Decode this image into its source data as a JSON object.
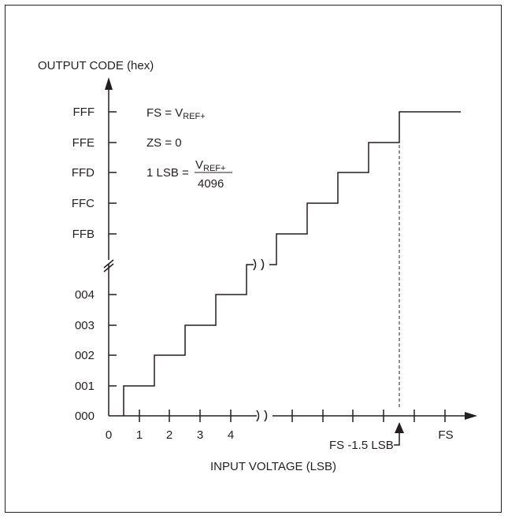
{
  "y_axis_label": "OUTPUT CODE (hex)",
  "x_axis_label": "INPUT VOLTAGE (LSB)",
  "y_ticks": [
    "FFF",
    "FFE",
    "FFD",
    "FFC",
    "FFB",
    "004",
    "003",
    "002",
    "001",
    "000"
  ],
  "x_ticks": [
    "0",
    "1",
    "2",
    "3",
    "4"
  ],
  "fs_label": "FS",
  "fs_minus_label": "FS -1.5 LSB",
  "annotations": {
    "fs_eq": "FS = V",
    "fs_sub": "REF+",
    "zs_eq": "ZS = 0",
    "lsb_eq": "1 LSB =",
    "lsb_num_v": "V",
    "lsb_num_sub": "REF+",
    "lsb_den": "4096"
  },
  "colors": {
    "line": "#231f20",
    "background": "#ffffff"
  }
}
